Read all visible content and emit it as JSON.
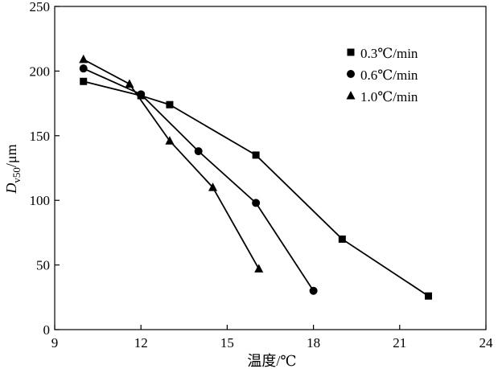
{
  "chart_data": {
    "type": "line",
    "xlabel": "温度/℃",
    "ylabel": "D",
    "ylabel_subscript": "v50",
    "ylabel_unit": "/μm",
    "xlim": [
      9,
      24
    ],
    "ylim": [
      0,
      250
    ],
    "xticks": [
      9,
      12,
      15,
      18,
      21,
      24
    ],
    "yticks": [
      0,
      50,
      100,
      150,
      200,
      250
    ],
    "grid": false,
    "legend_position": "top-right",
    "series": [
      {
        "name": "0.3℃/min",
        "marker": "square",
        "x": [
          10,
          12,
          13,
          16,
          19,
          22
        ],
        "y": [
          192,
          181,
          174,
          135,
          70,
          26
        ]
      },
      {
        "name": "0.6℃/min",
        "marker": "circle",
        "x": [
          10,
          12,
          14,
          16,
          18
        ],
        "y": [
          202,
          182,
          138,
          98,
          30
        ]
      },
      {
        "name": "1.0℃/min",
        "marker": "triangle",
        "x": [
          10,
          11.6,
          13,
          14.5,
          16.1
        ],
        "y": [
          209,
          190,
          146,
          110,
          47
        ]
      }
    ]
  }
}
